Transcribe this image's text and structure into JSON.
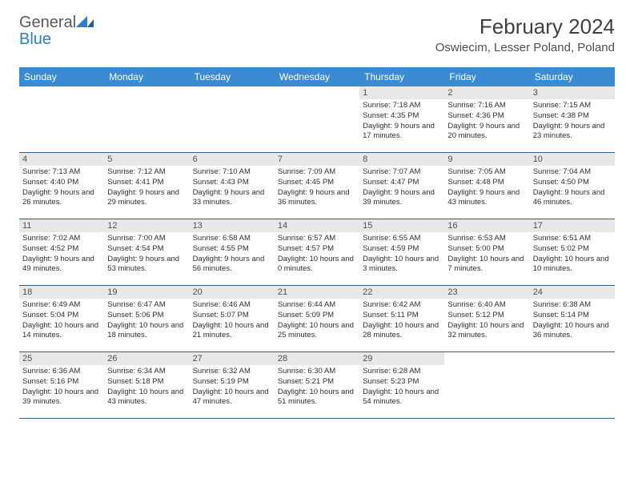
{
  "logo": {
    "textGray": "General",
    "textBlue": "Blue"
  },
  "title": "February 2024",
  "location": "Oswiecim, Lesser Poland, Poland",
  "dayNames": [
    "Sunday",
    "Monday",
    "Tuesday",
    "Wednesday",
    "Thursday",
    "Friday",
    "Saturday"
  ],
  "colors": {
    "headerBar": "#3b8bd4",
    "dayBar": "#e8e8e8",
    "rule": "#3b5a7a",
    "text": "#303030"
  },
  "weeks": [
    [
      null,
      null,
      null,
      null,
      {
        "n": "1",
        "sr": "7:18 AM",
        "ss": "4:35 PM",
        "dl": "9 hours and 17 minutes."
      },
      {
        "n": "2",
        "sr": "7:16 AM",
        "ss": "4:36 PM",
        "dl": "9 hours and 20 minutes."
      },
      {
        "n": "3",
        "sr": "7:15 AM",
        "ss": "4:38 PM",
        "dl": "9 hours and 23 minutes."
      }
    ],
    [
      {
        "n": "4",
        "sr": "7:13 AM",
        "ss": "4:40 PM",
        "dl": "9 hours and 26 minutes."
      },
      {
        "n": "5",
        "sr": "7:12 AM",
        "ss": "4:41 PM",
        "dl": "9 hours and 29 minutes."
      },
      {
        "n": "6",
        "sr": "7:10 AM",
        "ss": "4:43 PM",
        "dl": "9 hours and 33 minutes."
      },
      {
        "n": "7",
        "sr": "7:09 AM",
        "ss": "4:45 PM",
        "dl": "9 hours and 36 minutes."
      },
      {
        "n": "8",
        "sr": "7:07 AM",
        "ss": "4:47 PM",
        "dl": "9 hours and 39 minutes."
      },
      {
        "n": "9",
        "sr": "7:05 AM",
        "ss": "4:48 PM",
        "dl": "9 hours and 43 minutes."
      },
      {
        "n": "10",
        "sr": "7:04 AM",
        "ss": "4:50 PM",
        "dl": "9 hours and 46 minutes."
      }
    ],
    [
      {
        "n": "11",
        "sr": "7:02 AM",
        "ss": "4:52 PM",
        "dl": "9 hours and 49 minutes."
      },
      {
        "n": "12",
        "sr": "7:00 AM",
        "ss": "4:54 PM",
        "dl": "9 hours and 53 minutes."
      },
      {
        "n": "13",
        "sr": "6:58 AM",
        "ss": "4:55 PM",
        "dl": "9 hours and 56 minutes."
      },
      {
        "n": "14",
        "sr": "6:57 AM",
        "ss": "4:57 PM",
        "dl": "10 hours and 0 minutes."
      },
      {
        "n": "15",
        "sr": "6:55 AM",
        "ss": "4:59 PM",
        "dl": "10 hours and 3 minutes."
      },
      {
        "n": "16",
        "sr": "6:53 AM",
        "ss": "5:00 PM",
        "dl": "10 hours and 7 minutes."
      },
      {
        "n": "17",
        "sr": "6:51 AM",
        "ss": "5:02 PM",
        "dl": "10 hours and 10 minutes."
      }
    ],
    [
      {
        "n": "18",
        "sr": "6:49 AM",
        "ss": "5:04 PM",
        "dl": "10 hours and 14 minutes."
      },
      {
        "n": "19",
        "sr": "6:47 AM",
        "ss": "5:06 PM",
        "dl": "10 hours and 18 minutes."
      },
      {
        "n": "20",
        "sr": "6:46 AM",
        "ss": "5:07 PM",
        "dl": "10 hours and 21 minutes."
      },
      {
        "n": "21",
        "sr": "6:44 AM",
        "ss": "5:09 PM",
        "dl": "10 hours and 25 minutes."
      },
      {
        "n": "22",
        "sr": "6:42 AM",
        "ss": "5:11 PM",
        "dl": "10 hours and 28 minutes."
      },
      {
        "n": "23",
        "sr": "6:40 AM",
        "ss": "5:12 PM",
        "dl": "10 hours and 32 minutes."
      },
      {
        "n": "24",
        "sr": "6:38 AM",
        "ss": "5:14 PM",
        "dl": "10 hours and 36 minutes."
      }
    ],
    [
      {
        "n": "25",
        "sr": "6:36 AM",
        "ss": "5:16 PM",
        "dl": "10 hours and 39 minutes."
      },
      {
        "n": "26",
        "sr": "6:34 AM",
        "ss": "5:18 PM",
        "dl": "10 hours and 43 minutes."
      },
      {
        "n": "27",
        "sr": "6:32 AM",
        "ss": "5:19 PM",
        "dl": "10 hours and 47 minutes."
      },
      {
        "n": "28",
        "sr": "6:30 AM",
        "ss": "5:21 PM",
        "dl": "10 hours and 51 minutes."
      },
      {
        "n": "29",
        "sr": "6:28 AM",
        "ss": "5:23 PM",
        "dl": "10 hours and 54 minutes."
      },
      null,
      null
    ]
  ],
  "labels": {
    "sunrise": "Sunrise: ",
    "sunset": "Sunset: ",
    "daylight": "Daylight: "
  }
}
